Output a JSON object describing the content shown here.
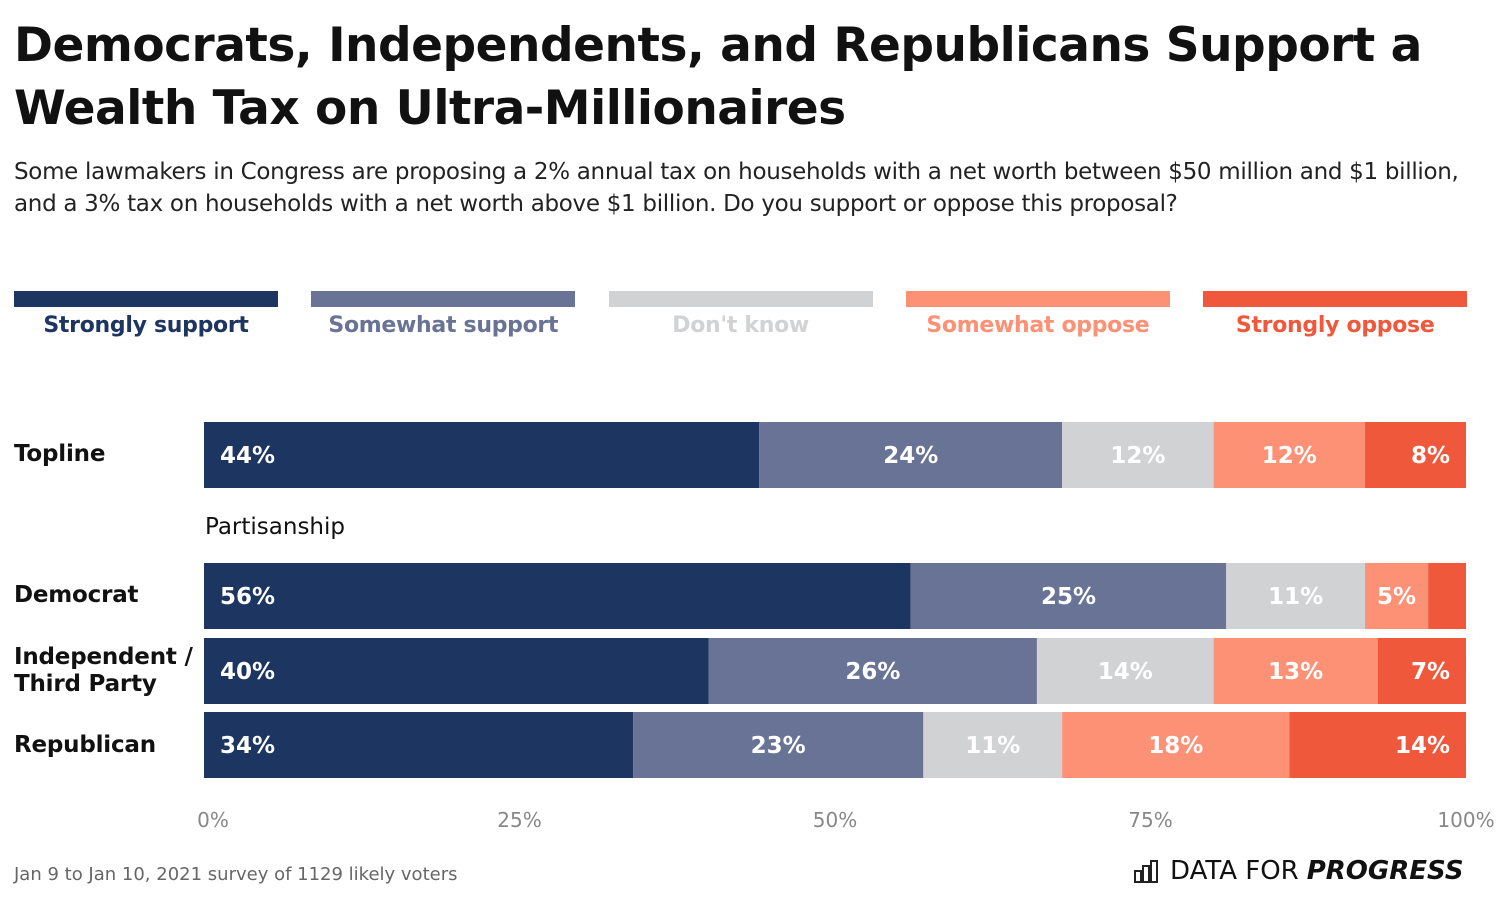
{
  "chart_data": {
    "type": "bar",
    "orientation": "horizontal",
    "stacked": true,
    "title": "Democrats, Independents, and Republicans Support a Wealth Tax on Ultra-Millionaires",
    "subtitle": "Some lawmakers in Congress are proposing a 2% annual tax on households with a net worth between $50 million and $1 billion, and a 3% tax on households with a net worth above $1 billion. Do you support or oppose this proposal?",
    "group_label": "Partisanship",
    "categories": [
      "Topline",
      "Democrat",
      "Independent / Third Party",
      "Republican"
    ],
    "series": [
      {
        "name": "Strongly support",
        "color": "#1d3561",
        "values": [
          44,
          56,
          40,
          34
        ]
      },
      {
        "name": "Somewhat support",
        "color": "#687395",
        "values": [
          24,
          25,
          26,
          23
        ]
      },
      {
        "name": "Don't know",
        "color": "#d1d2d4",
        "values": [
          12,
          11,
          14,
          11
        ]
      },
      {
        "name": "Somewhat oppose",
        "color": "#fd9176",
        "values": [
          12,
          5,
          13,
          18
        ]
      },
      {
        "name": "Strongly oppose",
        "color": "#f0583b",
        "values": [
          8,
          3,
          7,
          14
        ]
      }
    ],
    "data_labels": [
      [
        "44%",
        "24%",
        "12%",
        "12%",
        "8%"
      ],
      [
        "56%",
        "25%",
        "11%",
        "5%",
        ""
      ],
      [
        "40%",
        "26%",
        "14%",
        "13%",
        "7%"
      ],
      [
        "34%",
        "23%",
        "11%",
        "18%",
        "14%"
      ]
    ],
    "xlim": [
      0,
      100
    ],
    "x_ticks": [
      "0%",
      "25%",
      "50%",
      "75%",
      "100%"
    ],
    "legend_placement": "top",
    "grid": false
  },
  "footer": {
    "source": "Jan 9 to Jan 10, 2021 survey of 1129 likely voters",
    "logo_light": "DATA FOR",
    "logo_bold": "PROGRESS"
  },
  "legend_text_colors": [
    "#1d3561",
    "#687395",
    "#d1d2d4",
    "#fd9176",
    "#f0583b"
  ]
}
